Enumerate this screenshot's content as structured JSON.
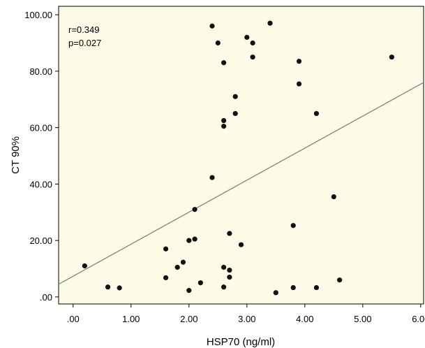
{
  "chart_data": {
    "type": "scatter",
    "title": "",
    "xlabel": "HSP70 (ng/ml)",
    "ylabel": "CT 90%",
    "xlim": [
      -0.25,
      6.05
    ],
    "ylim": [
      -2.5,
      103
    ],
    "x_ticks": [
      0,
      1,
      2,
      3,
      4,
      5,
      6
    ],
    "x_tick_labels": [
      ".00",
      "1.00",
      "2.00",
      "3.00",
      "4.00",
      "5.00",
      "6.00"
    ],
    "y_ticks": [
      0,
      20,
      40,
      60,
      80,
      100
    ],
    "y_tick_labels": [
      ".00",
      "20.00",
      "40.00",
      "60.00",
      "80.00",
      "100.00"
    ],
    "grid": false,
    "plot_background": "#fbfbe8",
    "point_color": "#111111",
    "line_color": "#7a7a7a",
    "annotations": [
      "r=0.349",
      "p=0.027"
    ],
    "series": [
      {
        "points": [
          {
            "x": 0.2,
            "y": 11
          },
          {
            "x": 0.6,
            "y": 3.5
          },
          {
            "x": 0.8,
            "y": 3.2
          },
          {
            "x": 1.6,
            "y": 17
          },
          {
            "x": 1.6,
            "y": 6.8
          },
          {
            "x": 1.8,
            "y": 10.5
          },
          {
            "x": 1.9,
            "y": 12.3
          },
          {
            "x": 2.0,
            "y": 20
          },
          {
            "x": 2.0,
            "y": 2.3
          },
          {
            "x": 2.1,
            "y": 20.5
          },
          {
            "x": 2.1,
            "y": 31
          },
          {
            "x": 2.2,
            "y": 5
          },
          {
            "x": 2.4,
            "y": 42.3
          },
          {
            "x": 2.4,
            "y": 96
          },
          {
            "x": 2.5,
            "y": 90
          },
          {
            "x": 2.6,
            "y": 83
          },
          {
            "x": 2.6,
            "y": 62.5
          },
          {
            "x": 2.6,
            "y": 60.5
          },
          {
            "x": 2.6,
            "y": 10.5
          },
          {
            "x": 2.6,
            "y": 3.5
          },
          {
            "x": 2.7,
            "y": 22.5
          },
          {
            "x": 2.7,
            "y": 9.5
          },
          {
            "x": 2.7,
            "y": 7
          },
          {
            "x": 2.8,
            "y": 71
          },
          {
            "x": 2.8,
            "y": 65
          },
          {
            "x": 2.9,
            "y": 18.5
          },
          {
            "x": 3.0,
            "y": 92
          },
          {
            "x": 3.1,
            "y": 90
          },
          {
            "x": 3.1,
            "y": 85
          },
          {
            "x": 3.4,
            "y": 97
          },
          {
            "x": 3.5,
            "y": 1.5
          },
          {
            "x": 3.8,
            "y": 25.3
          },
          {
            "x": 3.8,
            "y": 3.3
          },
          {
            "x": 3.9,
            "y": 83.5
          },
          {
            "x": 3.9,
            "y": 75.5
          },
          {
            "x": 4.2,
            "y": 65
          },
          {
            "x": 4.2,
            "y": 3.3
          },
          {
            "x": 4.5,
            "y": 35.5
          },
          {
            "x": 4.6,
            "y": 6
          },
          {
            "x": 5.5,
            "y": 85
          }
        ]
      }
    ],
    "regression_line": {
      "x": [
        -0.25,
        6.05
      ],
      "y": [
        4.5,
        76
      ]
    }
  }
}
